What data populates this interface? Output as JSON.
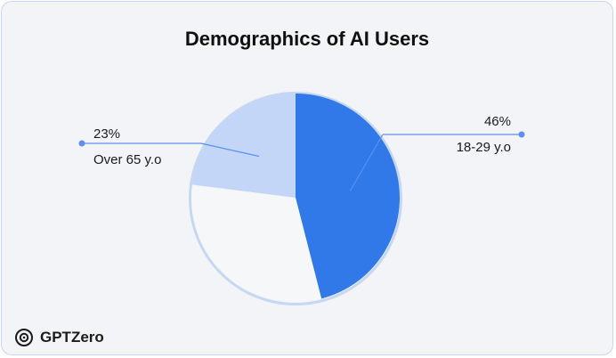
{
  "brand": {
    "name": "GPTZero",
    "icon": "gptzero-logo-icon"
  },
  "chart_data": {
    "type": "pie",
    "title": "Demographics of AI Users",
    "slices": [
      {
        "label": "18-29 y.o",
        "value": 46,
        "value_label": "46%",
        "color": "#3178e8",
        "labeled": true
      },
      {
        "label": "",
        "value": 31,
        "value_label": "",
        "color": "#f6f7f9",
        "labeled": false
      },
      {
        "label": "Over 65 y.o",
        "value": 23,
        "value_label": "23%",
        "color": "#c3d6f8",
        "labeled": true
      }
    ],
    "outline_color": "#c6d7f3",
    "leader_color": "#5b8ff0"
  }
}
